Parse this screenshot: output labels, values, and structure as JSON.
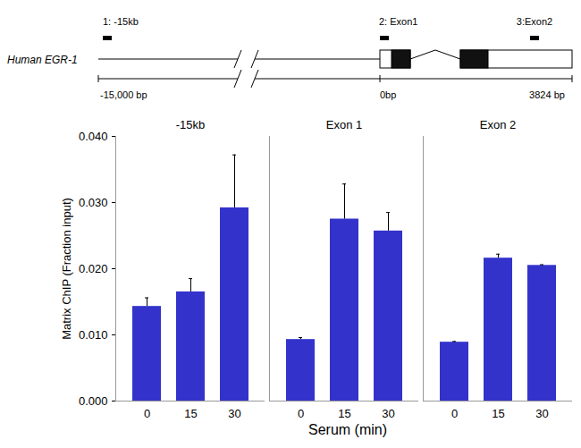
{
  "diagram": {
    "gene": "Human EGR-1",
    "probes": [
      "1: -15kb",
      "2: Exon1",
      "3:Exon2"
    ],
    "scale_labels": [
      "-15,000 bp",
      "0bp",
      "3824 bp"
    ]
  },
  "chart_data": {
    "type": "bar",
    "y_label": "Matrix ChIP (Fraction input)",
    "x_label": "Serum (min)",
    "categories": [
      "0",
      "15",
      "30"
    ],
    "color": "#3333cc",
    "ylim": [
      0,
      0.04
    ],
    "yticks": [
      {
        "value": 0,
        "label": "0.000"
      },
      {
        "value": 0.01,
        "label": "0.010"
      },
      {
        "value": 0.02,
        "label": "0.020"
      },
      {
        "value": 0.03,
        "label": "0.030"
      },
      {
        "value": 0.04,
        "label": "0.040"
      }
    ],
    "panels": [
      {
        "title": "-15kb",
        "values": [
          0.0143,
          0.0165,
          0.0292
        ],
        "errors": [
          0.0013,
          0.002,
          0.008
        ]
      },
      {
        "title": "Exon 1",
        "values": [
          0.0093,
          0.0275,
          0.0257
        ],
        "errors": [
          0.0003,
          0.0053,
          0.0028
        ]
      },
      {
        "title": "Exon 2",
        "values": [
          0.0089,
          0.0216,
          0.0205
        ],
        "errors": [
          0.0001,
          0.0006,
          0.0001
        ]
      }
    ]
  }
}
